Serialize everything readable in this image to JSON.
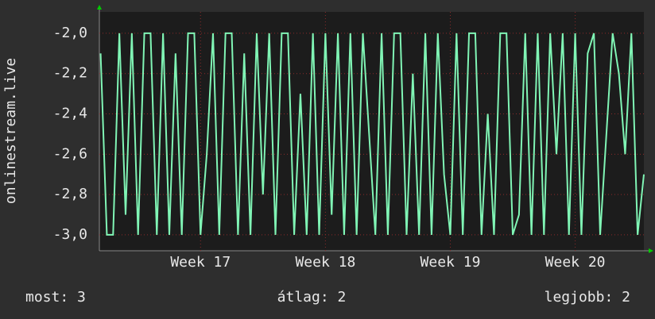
{
  "chart_data": {
    "type": "line",
    "y_label": "onlinestream.live",
    "x": [
      16.2,
      16.25,
      16.3,
      16.35,
      16.4,
      16.45,
      16.5,
      16.55,
      16.6,
      16.65,
      16.7,
      16.75,
      16.8,
      16.85,
      16.9,
      16.95,
      17.0,
      17.05,
      17.1,
      17.15,
      17.2,
      17.25,
      17.3,
      17.35,
      17.4,
      17.45,
      17.5,
      17.55,
      17.6,
      17.65,
      17.7,
      17.75,
      17.8,
      17.85,
      17.9,
      17.95,
      18.0,
      18.05,
      18.1,
      18.15,
      18.2,
      18.25,
      18.3,
      18.35,
      18.4,
      18.45,
      18.5,
      18.55,
      18.6,
      18.65,
      18.7,
      18.75,
      18.8,
      18.85,
      18.9,
      18.95,
      19.0,
      19.05,
      19.1,
      19.15,
      19.2,
      19.25,
      19.3,
      19.35,
      19.4,
      19.45,
      19.5,
      19.55,
      19.6,
      19.65,
      19.7,
      19.75,
      19.8,
      19.85,
      19.9,
      19.95,
      20.0,
      20.05,
      20.1,
      20.15,
      20.2,
      20.25,
      20.3,
      20.35,
      20.4,
      20.45,
      20.5,
      20.55
    ],
    "series": [
      {
        "color": "#80f5b5",
        "values": [
          -2.1,
          -3.0,
          -3.0,
          -2.0,
          -2.9,
          -2.0,
          -3.0,
          -2.0,
          -2.0,
          -3.0,
          -2.0,
          -3.0,
          -2.1,
          -3.0,
          -2.0,
          -2.0,
          -3.0,
          -2.6,
          -2.0,
          -3.0,
          -2.0,
          -2.0,
          -3.0,
          -2.1,
          -3.0,
          -2.0,
          -2.8,
          -2.0,
          -3.0,
          -2.0,
          -2.0,
          -3.0,
          -2.3,
          -3.0,
          -2.0,
          -3.0,
          -2.0,
          -2.9,
          -2.0,
          -3.0,
          -2.0,
          -3.0,
          -2.0,
          -2.5,
          -3.0,
          -2.0,
          -3.0,
          -2.0,
          -2.0,
          -3.0,
          -2.2,
          -3.0,
          -2.0,
          -3.0,
          -2.0,
          -2.7,
          -3.0,
          -2.0,
          -3.0,
          -2.0,
          -2.0,
          -3.0,
          -2.4,
          -3.0,
          -2.0,
          -2.0,
          -3.0,
          -2.9,
          -2.0,
          -3.0,
          -2.0,
          -3.0,
          -2.0,
          -2.6,
          -2.0,
          -3.0,
          -2.0,
          -3.0,
          -2.1,
          -2.0,
          -3.0,
          -2.5,
          -2.0,
          -2.2,
          -2.6,
          -2.0,
          -3.0,
          -2.7
        ]
      }
    ],
    "xlim": [
      16.19,
      20.55
    ],
    "xticks": [
      {
        "value": 17,
        "label": "Week 17"
      },
      {
        "value": 18,
        "label": "Week 18"
      },
      {
        "value": 19,
        "label": "Week 19"
      },
      {
        "value": 20,
        "label": "Week 20"
      }
    ],
    "ylim": [
      -3.079,
      -1.894
    ],
    "yticks": [
      {
        "value": -3.0,
        "label": "-3,0"
      },
      {
        "value": -2.8,
        "label": "-2,8"
      },
      {
        "value": -2.6,
        "label": "-2,6"
      },
      {
        "value": -2.4,
        "label": "-2,4"
      },
      {
        "value": -2.2,
        "label": "-2,2"
      },
      {
        "value": -2.0,
        "label": "-2,0"
      }
    ],
    "grid": true,
    "footer": [
      "most: 3",
      "átlag: 2",
      "legjobb: 2"
    ]
  }
}
